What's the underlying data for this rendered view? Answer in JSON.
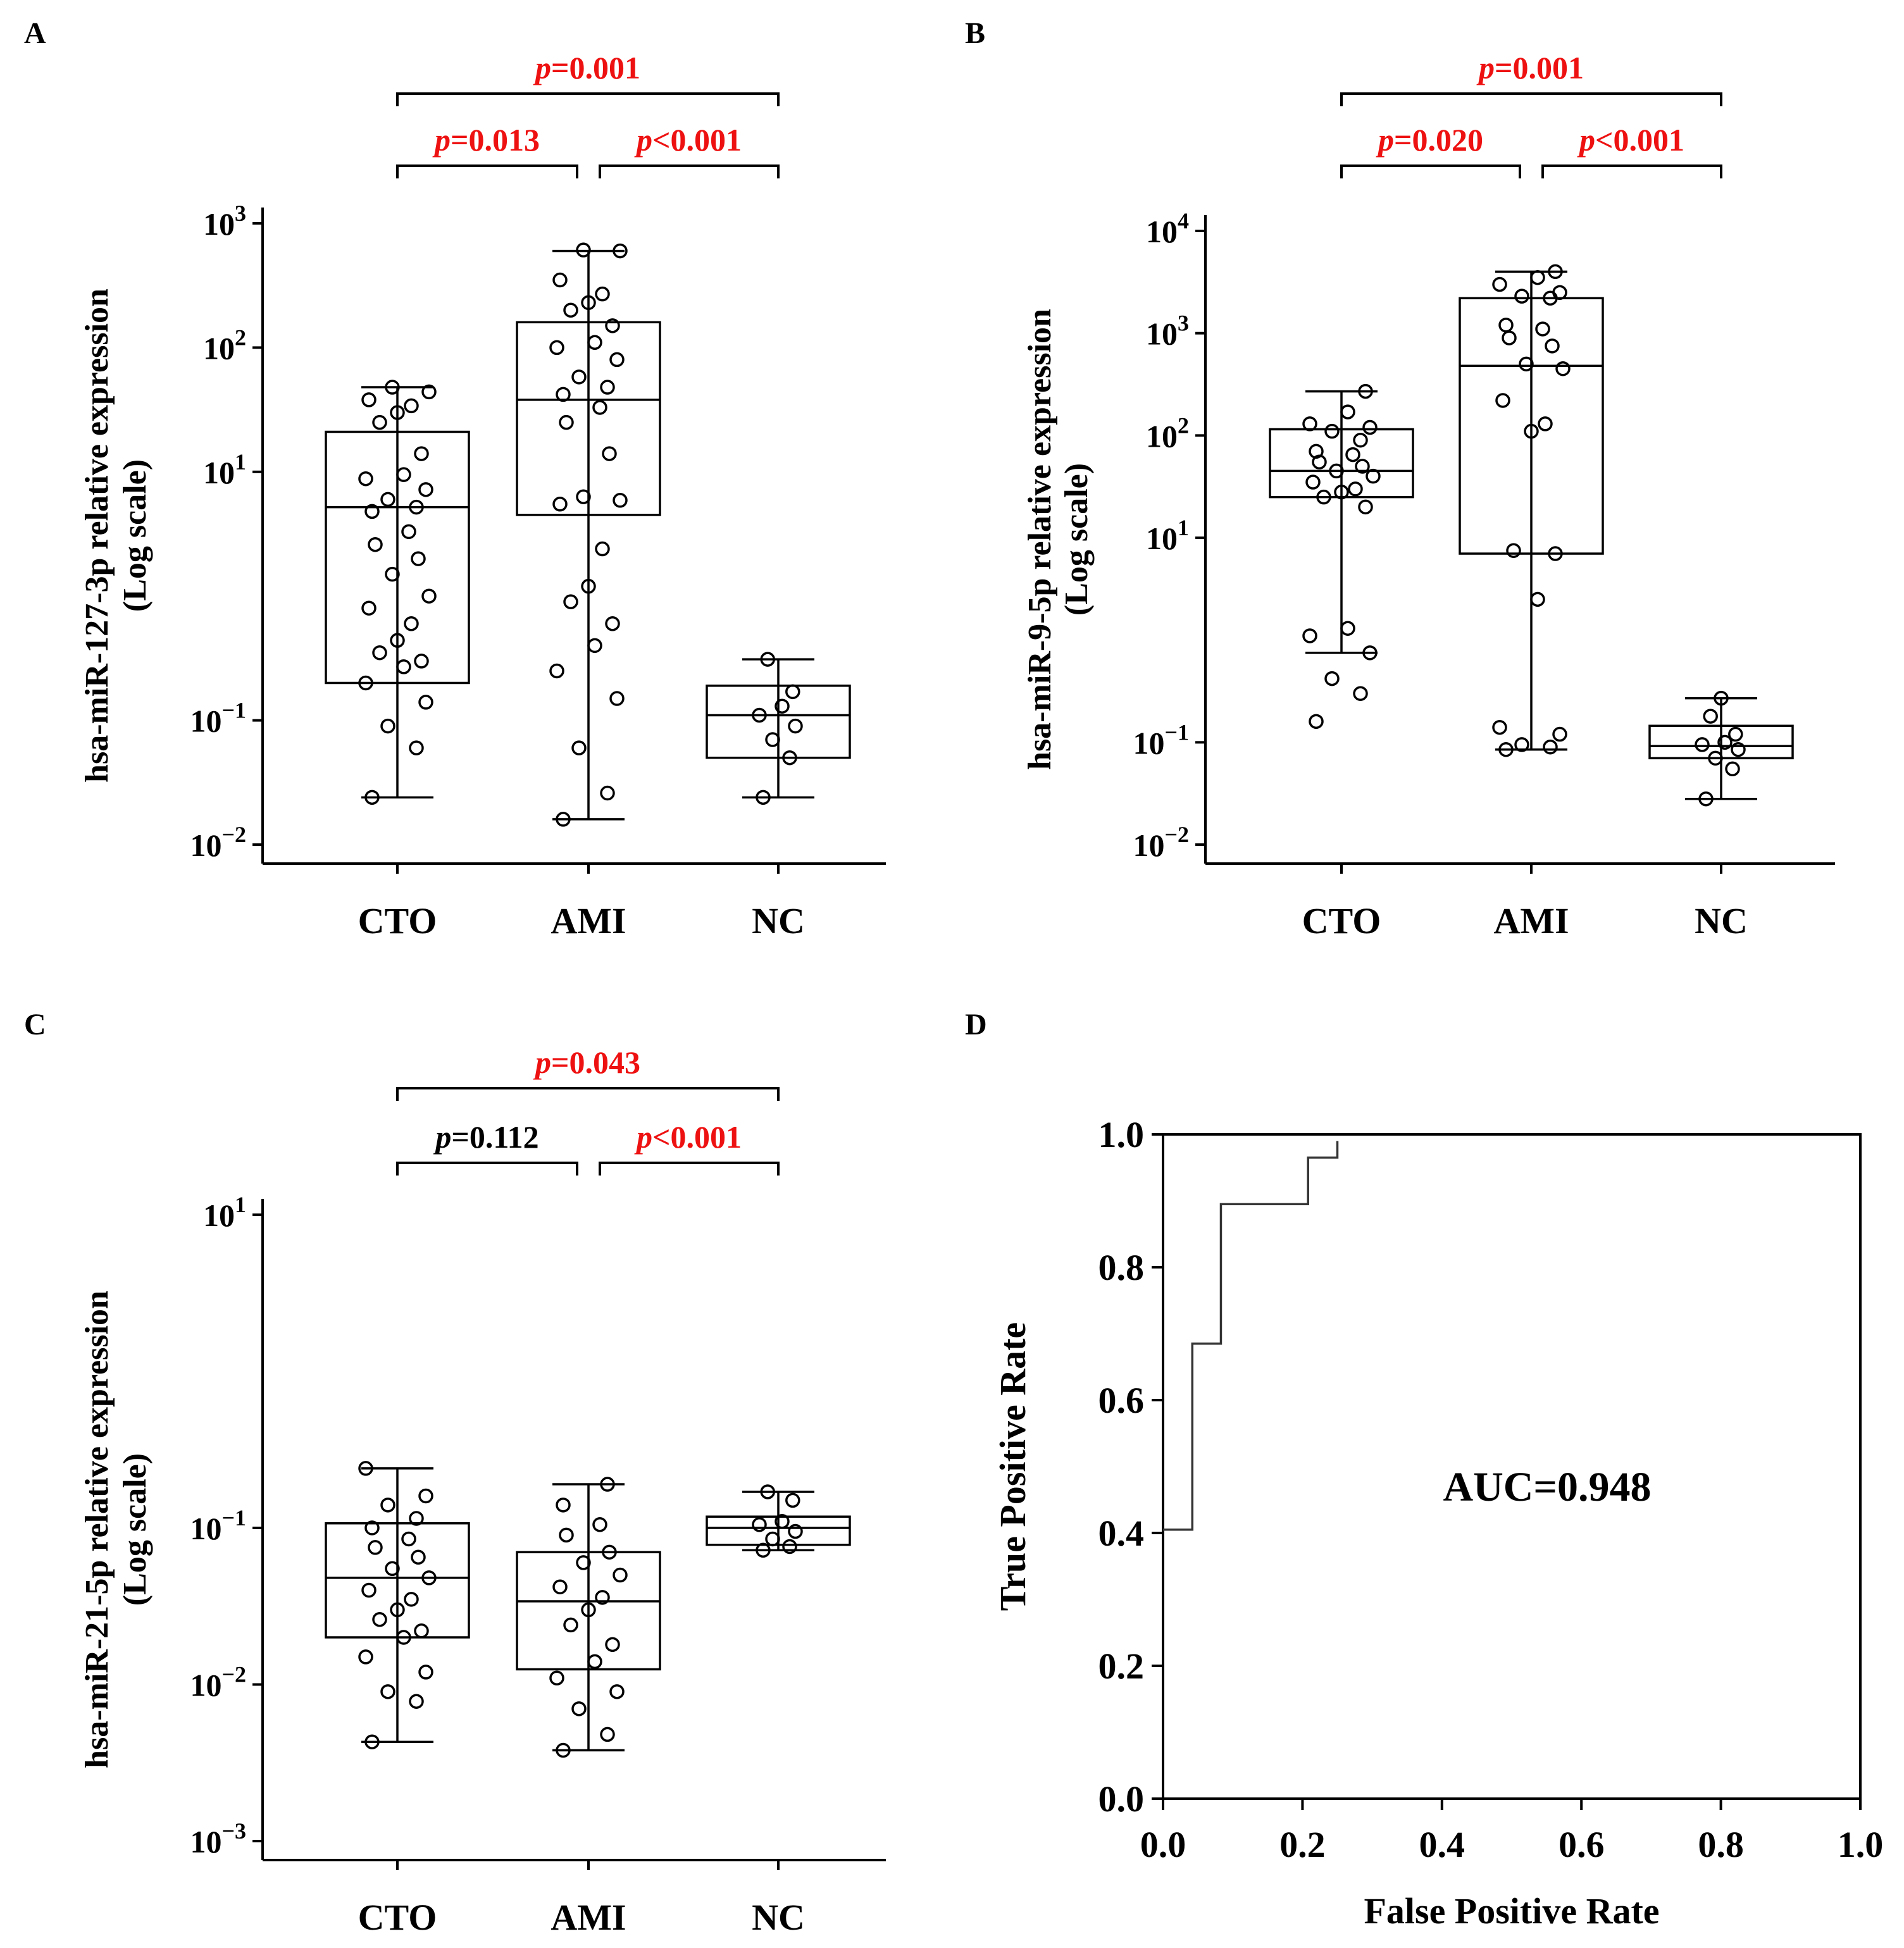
{
  "colors": {
    "significant": "#ee1111",
    "normal": "#000000",
    "roc_line": "#333333"
  },
  "chart_data": [
    {
      "panel": "A",
      "type": "box",
      "ylabel_line1": "hsa-miR-127-3p relative expression",
      "ylabel_line2": "(Log scale)",
      "yscale": "log",
      "ylim": [
        0.01,
        1000
      ],
      "yticks": [
        {
          "base": "10",
          "exp": "3",
          "value": 1000
        },
        {
          "base": "10",
          "exp": "2",
          "value": 100
        },
        {
          "base": "10",
          "exp": "1",
          "value": 10
        },
        {
          "base": "10",
          "exp": "−1",
          "value": 0.1
        },
        {
          "base": "10",
          "exp": "−2",
          "value": 0.01
        }
      ],
      "categories": [
        "CTO",
        "AMI",
        "NC"
      ],
      "groups": [
        {
          "name": "CTO",
          "min": 0.024,
          "q1": 0.2,
          "median": 5.2,
          "q3": 21,
          "max": 48,
          "points": [
            0.024,
            0.06,
            0.09,
            0.14,
            0.2,
            0.27,
            0.3,
            0.35,
            0.44,
            0.6,
            0.8,
            1.0,
            1.5,
            2.0,
            2.6,
            3.3,
            4.8,
            5.2,
            6.0,
            7.2,
            8.8,
            9.5,
            14,
            25,
            30,
            34,
            38,
            44,
            48
          ]
        },
        {
          "name": "AMI",
          "min": 0.016,
          "q1": 4.5,
          "median": 38,
          "q3": 160,
          "max": 600,
          "points": [
            0.016,
            0.026,
            0.06,
            0.15,
            0.25,
            0.4,
            0.6,
            0.9,
            1.2,
            2.4,
            5.5,
            5.9,
            6.3,
            14,
            25,
            33,
            42,
            48,
            58,
            80,
            100,
            110,
            150,
            200,
            230,
            270,
            350,
            600,
            610
          ]
        },
        {
          "name": "NC",
          "min": 0.024,
          "q1": 0.05,
          "median": 0.11,
          "q3": 0.19,
          "max": 0.31,
          "points": [
            0.024,
            0.05,
            0.07,
            0.09,
            0.11,
            0.13,
            0.17,
            0.31
          ]
        }
      ],
      "comparisons": [
        {
          "label_p": "p",
          "label_rest": "=0.001",
          "significant": true,
          "from": "CTO",
          "to": "NC",
          "level": 2
        },
        {
          "label_p": "p",
          "label_rest": "=0.013",
          "significant": true,
          "from": "CTO",
          "to": "AMI",
          "level": 1
        },
        {
          "label_p": "p",
          "label_rest": "<0.001",
          "significant": true,
          "from": "AMI",
          "to": "NC",
          "level": 1
        }
      ]
    },
    {
      "panel": "B",
      "type": "box",
      "ylabel_line1": "hsa-miR-9-5p relative expression",
      "ylabel_line2": "(Log scale)",
      "yscale": "log",
      "ylim": [
        0.01,
        10000
      ],
      "yticks": [
        {
          "base": "10",
          "exp": "4",
          "value": 10000
        },
        {
          "base": "10",
          "exp": "3",
          "value": 1000
        },
        {
          "base": "10",
          "exp": "2",
          "value": 100
        },
        {
          "base": "10",
          "exp": "1",
          "value": 10
        },
        {
          "base": "10",
          "exp": "−1",
          "value": 0.1
        },
        {
          "base": "10",
          "exp": "−2",
          "value": 0.01
        }
      ],
      "categories": [
        "CTO",
        "AMI",
        "NC"
      ],
      "groups": [
        {
          "name": "CTO",
          "min": 0.75,
          "q1": 25,
          "median": 45,
          "q3": 115,
          "max": 270,
          "points": [
            0.16,
            0.3,
            0.42,
            0.75,
            1.1,
            1.3,
            20,
            25,
            28,
            30,
            35,
            40,
            45,
            50,
            55,
            65,
            70,
            90,
            110,
            120,
            130,
            170,
            270
          ]
        },
        {
          "name": "AMI",
          "min": 0.085,
          "q1": 7,
          "median": 480,
          "q3": 2200,
          "max": 4000,
          "points": [
            0.085,
            0.09,
            0.095,
            0.12,
            0.14,
            2.5,
            7,
            7.5,
            110,
            130,
            220,
            450,
            500,
            750,
            900,
            1100,
            1200,
            2200,
            2300,
            2500,
            3000,
            3500,
            4000
          ]
        },
        {
          "name": "NC",
          "min": 0.028,
          "q1": 0.07,
          "median": 0.092,
          "q3": 0.145,
          "max": 0.27,
          "points": [
            0.028,
            0.055,
            0.07,
            0.085,
            0.095,
            0.1,
            0.12,
            0.18,
            0.27
          ]
        }
      ],
      "comparisons": [
        {
          "label_p": "p",
          "label_rest": "=0.001",
          "significant": true,
          "from": "CTO",
          "to": "NC",
          "level": 2
        },
        {
          "label_p": "p",
          "label_rest": "=0.020",
          "significant": true,
          "from": "CTO",
          "to": "AMI",
          "level": 1
        },
        {
          "label_p": "p",
          "label_rest": "<0.001",
          "significant": true,
          "from": "AMI",
          "to": "NC",
          "level": 1
        }
      ]
    },
    {
      "panel": "C",
      "type": "box",
      "ylabel_line1": "hsa-miR-21-5p relative expression",
      "ylabel_line2": "(Log scale)",
      "yscale": "log",
      "ylim": [
        0.001,
        10
      ],
      "yticks": [
        {
          "base": "10",
          "exp": "1",
          "value": 10
        },
        {
          "base": "10",
          "exp": "−1",
          "value": 0.1
        },
        {
          "base": "10",
          "exp": "−2",
          "value": 0.01
        },
        {
          "base": "10",
          "exp": "−3",
          "value": 0.001
        }
      ],
      "categories": [
        "CTO",
        "AMI",
        "NC"
      ],
      "groups": [
        {
          "name": "CTO",
          "min": 0.0043,
          "q1": 0.02,
          "median": 0.048,
          "q3": 0.107,
          "max": 0.24,
          "points": [
            0.0043,
            0.0078,
            0.009,
            0.012,
            0.015,
            0.02,
            0.022,
            0.026,
            0.03,
            0.035,
            0.04,
            0.048,
            0.055,
            0.065,
            0.075,
            0.085,
            0.1,
            0.115,
            0.14,
            0.16,
            0.24
          ]
        },
        {
          "name": "AMI",
          "min": 0.0038,
          "q1": 0.0125,
          "median": 0.034,
          "q3": 0.07,
          "max": 0.19,
          "points": [
            0.0038,
            0.0048,
            0.007,
            0.009,
            0.011,
            0.014,
            0.018,
            0.024,
            0.03,
            0.036,
            0.042,
            0.05,
            0.06,
            0.07,
            0.09,
            0.105,
            0.14,
            0.19
          ]
        },
        {
          "name": "NC",
          "min": 0.072,
          "q1": 0.078,
          "median": 0.1,
          "q3": 0.118,
          "max": 0.17,
          "points": [
            0.072,
            0.076,
            0.085,
            0.095,
            0.105,
            0.11,
            0.15,
            0.17
          ]
        }
      ],
      "comparisons": [
        {
          "label_p": "p",
          "label_rest": "=0.043",
          "significant": true,
          "from": "CTO",
          "to": "NC",
          "level": 2
        },
        {
          "label_p": "p",
          "label_rest": "=0.112",
          "significant": false,
          "from": "CTO",
          "to": "AMI",
          "level": 1
        },
        {
          "label_p": "p",
          "label_rest": "<0.001",
          "significant": true,
          "from": "AMI",
          "to": "NC",
          "level": 1
        }
      ]
    },
    {
      "panel": "D",
      "type": "line",
      "xlabel": "False Positive Rate",
      "ylabel": "True Positive Rate",
      "xlim": [
        0,
        1
      ],
      "ylim": [
        0,
        1
      ],
      "xticks": [
        "0.0",
        "0.2",
        "0.4",
        "0.6",
        "0.8",
        "1.0"
      ],
      "yticks": [
        "0.0",
        "0.2",
        "0.4",
        "0.6",
        "0.8",
        "1.0"
      ],
      "annotation": "AUC=0.948",
      "roc_points": [
        [
          0,
          0.405
        ],
        [
          0.042,
          0.405
        ],
        [
          0.042,
          0.685
        ],
        [
          0.083,
          0.685
        ],
        [
          0.083,
          0.895
        ],
        [
          0.208,
          0.895
        ],
        [
          0.208,
          0.965
        ],
        [
          0.25,
          0.965
        ],
        [
          0.25,
          0.99
        ]
      ]
    }
  ]
}
